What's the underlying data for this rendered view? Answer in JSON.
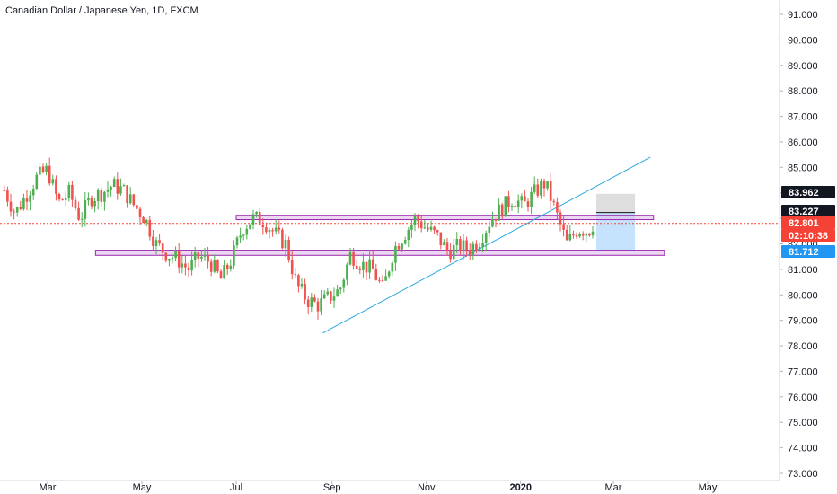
{
  "chart_data": {
    "type": "candlestick",
    "title": "Canadian Dollar / Japanese Yen, 1D, FXCM",
    "x_ticks": [
      "Mar",
      "May",
      "Jul",
      "Sep",
      "Nov",
      "2020",
      "Mar",
      "May"
    ],
    "y_ticks": [
      "91.000",
      "90.000",
      "89.000",
      "88.000",
      "87.000",
      "86.000",
      "85.000",
      "84.000",
      "83.000",
      "82.000",
      "81.000",
      "80.000",
      "79.000",
      "78.000",
      "77.000",
      "76.000",
      "75.000",
      "74.000",
      "73.000"
    ],
    "ylim": [
      72.8,
      91.5
    ],
    "close_path": [
      [
        "2019-02-01",
        84.1
      ],
      [
        "2019-02-08",
        83.2
      ],
      [
        "2019-02-15",
        83.9
      ],
      [
        "2019-02-22",
        84.6
      ],
      [
        "2019-03-01",
        84.9
      ],
      [
        "2019-03-08",
        83.6
      ],
      [
        "2019-03-15",
        84.0
      ],
      [
        "2019-03-22",
        83.0
      ],
      [
        "2019-03-29",
        83.8
      ],
      [
        "2019-04-05",
        84.0
      ],
      [
        "2019-04-12",
        84.3
      ],
      [
        "2019-04-19",
        84.1
      ],
      [
        "2019-04-26",
        83.5
      ],
      [
        "2019-05-03",
        83.0
      ],
      [
        "2019-05-10",
        82.0
      ],
      [
        "2019-05-17",
        81.6
      ],
      [
        "2019-05-24",
        81.4
      ],
      [
        "2019-05-31",
        81.0
      ],
      [
        "2019-06-07",
        81.5
      ],
      [
        "2019-06-14",
        81.3
      ],
      [
        "2019-06-21",
        80.6
      ],
      [
        "2019-06-28",
        81.4
      ],
      [
        "2019-07-05",
        82.6
      ],
      [
        "2019-07-12",
        83.0
      ],
      [
        "2019-07-19",
        82.9
      ],
      [
        "2019-07-26",
        82.4
      ],
      [
        "2019-08-02",
        82.0
      ],
      [
        "2019-08-09",
        80.4
      ],
      [
        "2019-08-16",
        79.8
      ],
      [
        "2019-08-23",
        79.6
      ],
      [
        "2019-08-30",
        79.9
      ],
      [
        "2019-09-06",
        80.2
      ],
      [
        "2019-09-13",
        81.6
      ],
      [
        "2019-09-20",
        81.2
      ],
      [
        "2019-09-27",
        81.0
      ],
      [
        "2019-10-04",
        80.2
      ],
      [
        "2019-10-11",
        81.8
      ],
      [
        "2019-10-18",
        82.4
      ],
      [
        "2019-10-25",
        83.0
      ],
      [
        "2019-11-01",
        82.6
      ],
      [
        "2019-11-08",
        82.3
      ],
      [
        "2019-11-15",
        81.7
      ],
      [
        "2019-11-22",
        81.9
      ],
      [
        "2019-11-29",
        81.8
      ],
      [
        "2019-12-06",
        82.2
      ],
      [
        "2019-12-13",
        83.0
      ],
      [
        "2019-12-20",
        83.4
      ],
      [
        "2019-12-27",
        83.8
      ],
      [
        "2020-01-03",
        83.5
      ],
      [
        "2020-01-10",
        84.0
      ],
      [
        "2020-01-17",
        84.4
      ],
      [
        "2020-01-24",
        83.2
      ],
      [
        "2020-01-31",
        82.0
      ],
      [
        "2020-02-07",
        82.6
      ],
      [
        "2020-02-14",
        82.5
      ],
      [
        "2020-02-17",
        82.8
      ]
    ],
    "support_resistance": [
      {
        "from": "2019-07-01",
        "to": "2020-03-27",
        "low": 82.95,
        "high": 83.12
      },
      {
        "from": "2019-04-01",
        "to": "2020-04-03",
        "low": 81.55,
        "high": 81.75
      }
    ],
    "trendline": {
      "from": [
        "2019-08-26",
        78.5
      ],
      "to": [
        "2020-03-25",
        85.4
      ]
    },
    "position": {
      "from": "2020-02-19",
      "to": "2020-03-15",
      "entry": 83.227,
      "target": 83.962,
      "stop": 81.712
    },
    "current_price": 82.801,
    "price_tags": [
      {
        "value": "83.962",
        "bg": "#131722",
        "fg": "#ffffff"
      },
      {
        "value": "83.227",
        "bg": "#131722",
        "fg": "#ffffff"
      },
      {
        "value": "82.801",
        "bg": "#f44336",
        "fg": "#ffffff"
      },
      {
        "value": "02:10:38",
        "bg": "#f44336",
        "fg": "#ffffff"
      },
      {
        "value": "81.712",
        "bg": "#2196f3",
        "fg": "#ffffff"
      }
    ],
    "colors": {
      "up": "#4caf50",
      "down": "#ef5350",
      "zone_fill": "#e1bee7",
      "zone_stroke": "#9c27b0",
      "trend": "#29a9e1",
      "profit": "#d8d8d8",
      "loss": "#bbdefb"
    }
  }
}
